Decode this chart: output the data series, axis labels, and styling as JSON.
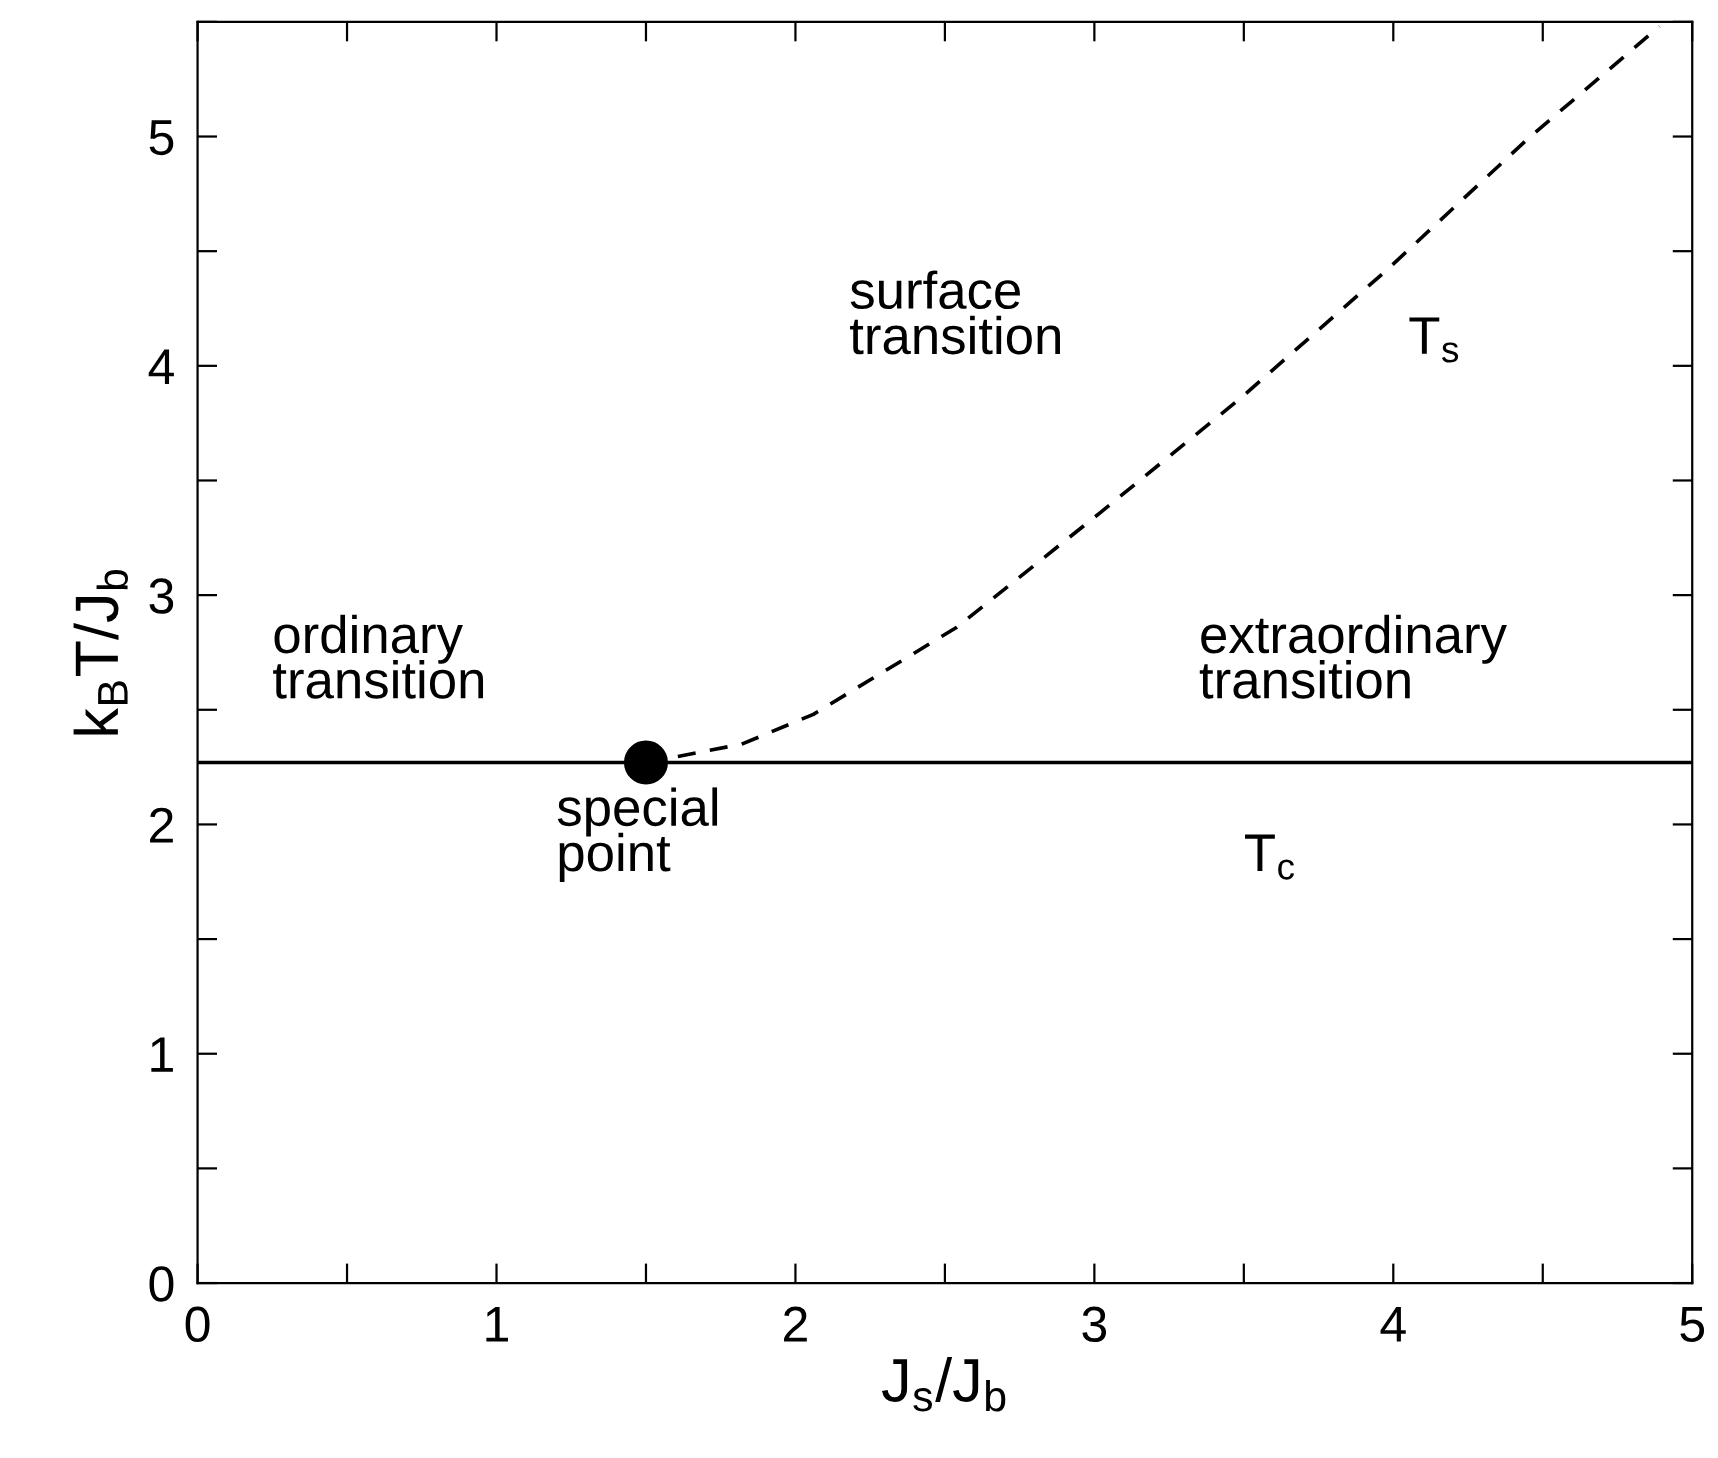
{
  "chart_data": {
    "type": "line",
    "xlabel": "J$_{s}$/J$_{b}$",
    "ylabel": "k$_{B}$T/J$_{b}$",
    "xlim": [
      0,
      5
    ],
    "ylim": [
      0,
      5.5
    ],
    "xticks": [
      0,
      {
        "value": 0.5,
        "label": null
      },
      1,
      {
        "value": 1.5,
        "label": null
      },
      2,
      {
        "value": 2.5,
        "label": null
      },
      3,
      {
        "value": 3.5,
        "label": null
      },
      4,
      {
        "value": 4.5,
        "label": null
      },
      5
    ],
    "yticks": [
      0,
      {
        "value": 0.5,
        "label": null
      },
      1,
      {
        "value": 1.5,
        "label": null
      },
      2,
      {
        "value": 2.5,
        "label": null
      },
      3,
      {
        "value": 3.5,
        "label": null
      },
      4,
      {
        "value": 4.5,
        "label": null
      },
      5,
      {
        "value": 5.5,
        "label": null
      }
    ],
    "grid": false,
    "legend": false,
    "series": [
      {
        "line_style": "dashed",
        "color": "#000000",
        "x": [
          1.5,
          1.82,
          2.06,
          2.54,
          3.02,
          3.49,
          3.98,
          4.45,
          4.89
        ],
        "values": [
          2.27,
          2.35,
          2.48,
          2.86,
          3.36,
          3.86,
          4.42,
          4.99,
          5.48
        ]
      },
      {
        "type": "scatter",
        "marker": "circle",
        "color": "#000000",
        "x": [
          1.5
        ],
        "values": [
          2.27
        ]
      }
    ],
    "ref_lines": [
      {
        "axis": "y",
        "value": 2.27,
        "color": "#000000",
        "line_style": "solid"
      }
    ],
    "annotations": [
      "surface\ntransition",
      "T$_{s}$",
      "ordinary\ntransition",
      "extraordinary\ntransition",
      "special\npoint",
      "T$_{c}$"
    ]
  }
}
